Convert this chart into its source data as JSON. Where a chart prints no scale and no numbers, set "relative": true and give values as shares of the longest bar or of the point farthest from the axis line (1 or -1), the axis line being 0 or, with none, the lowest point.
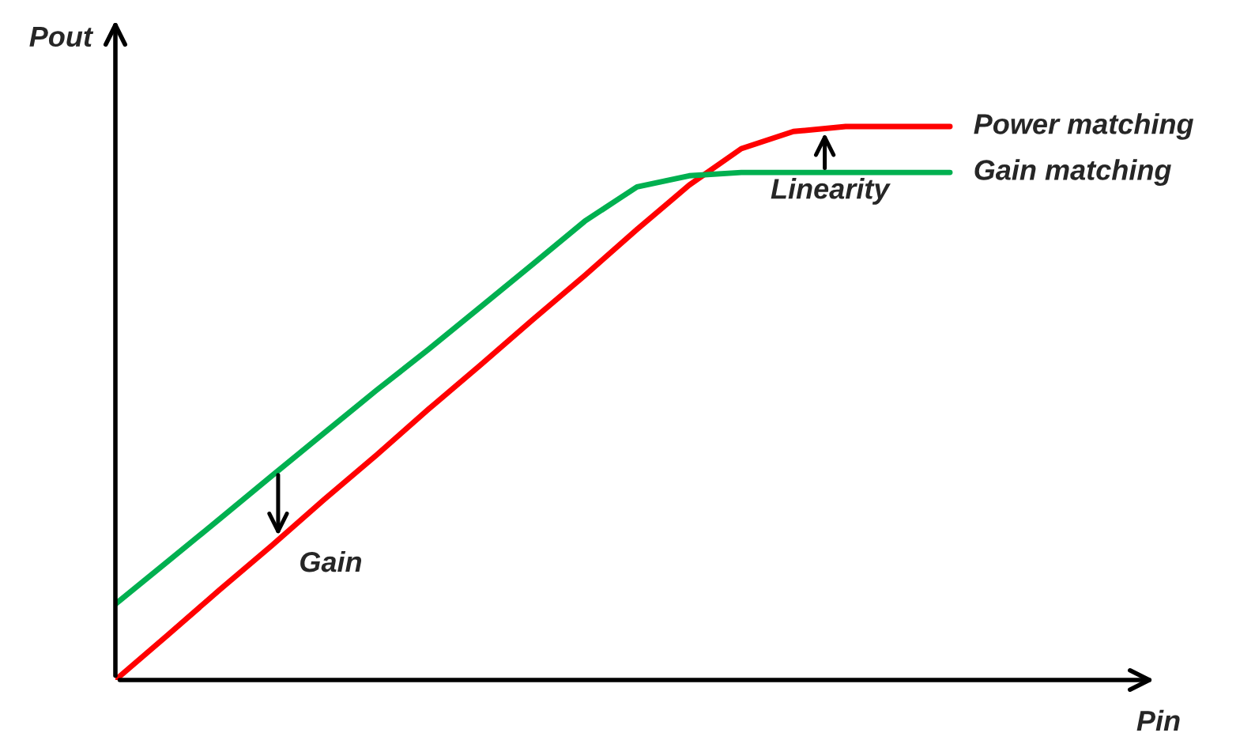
{
  "chart_data": {
    "type": "line",
    "relative": true,
    "xlabel": "Pin",
    "ylabel": "Pout",
    "categories": [
      null,
      null,
      null,
      null,
      null,
      null,
      null,
      null,
      null,
      null,
      null,
      null,
      null,
      null,
      null,
      null,
      null,
      null,
      null,
      null,
      null
    ],
    "series": [
      {
        "name": "Power matching",
        "color": "#ff0000",
        "values": [
          0,
          0.081,
          0.163,
          0.243,
          0.326,
          0.406,
          0.489,
          0.569,
          0.651,
          0.731,
          0.814,
          0.894,
          0.96,
          0.991,
          1,
          1,
          1,
          null,
          null,
          null,
          null
        ]
      },
      {
        "name": "Gain matching",
        "color": "#00b050",
        "values": [
          0.137,
          0.214,
          0.291,
          0.369,
          0.446,
          0.523,
          0.597,
          0.674,
          0.751,
          0.829,
          0.891,
          0.911,
          0.917,
          0.917,
          0.917,
          0.917,
          0.917,
          null,
          null,
          null,
          null
        ]
      }
    ],
    "annotations": [
      "Gain",
      "Linearity"
    ],
    "legend": false,
    "marker": "none",
    "line_style": "solid"
  }
}
